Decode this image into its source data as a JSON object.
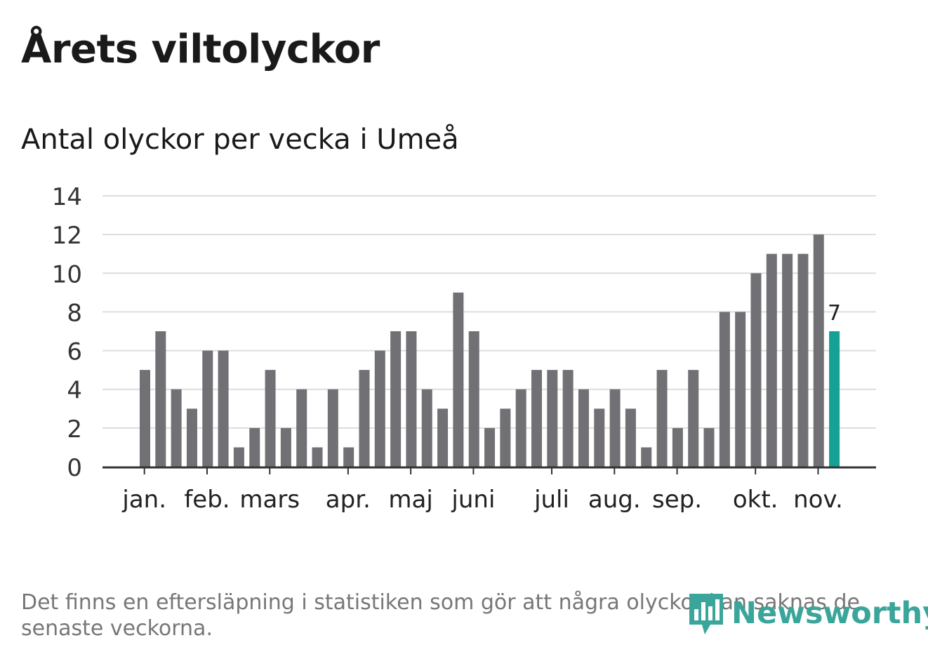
{
  "header": {
    "title": "Årets viltolyckor",
    "subtitle": "Antal olyckor per vecka i Umeå"
  },
  "footer": {
    "note": "Det finns en eftersläpning i statistiken som gör att några olyckor kan saknas de senaste veckorna.",
    "brand": "Newsworthy"
  },
  "colors": {
    "bar": "#717075",
    "highlight": "#15a195",
    "grid": "#dddddd",
    "axis": "#333333",
    "brand": "#3aa59a"
  },
  "icons": {
    "logo": "bar-chart-speech-bubble-icon"
  },
  "chart_data": {
    "type": "bar",
    "title": "Antal olyckor per vecka i Umeå",
    "xlabel": "",
    "ylabel": "",
    "ylim": [
      0,
      14
    ],
    "yticks": [
      0,
      2,
      4,
      6,
      8,
      10,
      12,
      14
    ],
    "grid": true,
    "values": [
      5,
      7,
      4,
      3,
      6,
      6,
      1,
      2,
      5,
      2,
      4,
      1,
      4,
      1,
      5,
      6,
      7,
      7,
      4,
      3,
      9,
      7,
      2,
      3,
      4,
      5,
      5,
      5,
      4,
      3,
      4,
      3,
      1,
      5,
      2,
      5,
      2,
      8,
      8,
      10,
      11,
      11,
      11,
      12,
      7
    ],
    "highlight_index": 44,
    "highlight_label": "7",
    "month_ticks": [
      {
        "label": "jan.",
        "week_index": 0.3
      },
      {
        "label": "feb.",
        "week_index": 4.3
      },
      {
        "label": "mars",
        "week_index": 8.3
      },
      {
        "label": "apr.",
        "week_index": 13.3
      },
      {
        "label": "maj",
        "week_index": 17.3
      },
      {
        "label": "juni",
        "week_index": 21.3
      },
      {
        "label": "juli",
        "week_index": 26.3
      },
      {
        "label": "aug.",
        "week_index": 30.3
      },
      {
        "label": "sep.",
        "week_index": 34.3
      },
      {
        "label": "okt.",
        "week_index": 39.3
      },
      {
        "label": "nov.",
        "week_index": 43.3
      }
    ]
  }
}
